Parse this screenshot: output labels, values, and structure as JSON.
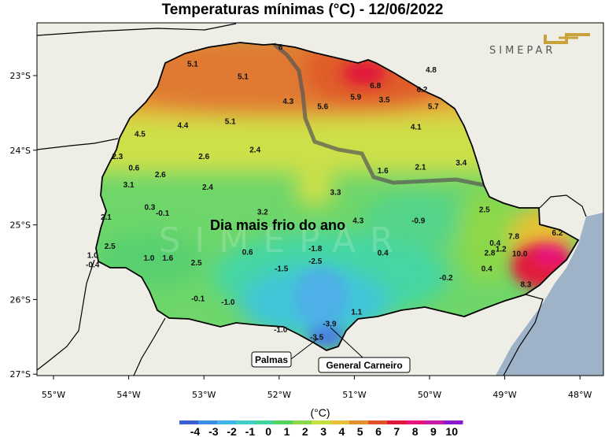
{
  "title": "Temperaturas mínimas (°C) - 12/06/2022",
  "annotation": "Dia mais frio do ano",
  "logo_text": "SIMEPAR",
  "x_ticks": [
    "55°W",
    "54°W",
    "53°W",
    "52°W",
    "51°W",
    "50°W",
    "49°W",
    "48°W"
  ],
  "y_ticks": [
    "23°S",
    "24°S",
    "25°S",
    "26°S",
    "27°S"
  ],
  "cities": [
    {
      "label": "Palmas"
    },
    {
      "label": "General Carneiro"
    }
  ],
  "colorbar": {
    "unit": "(°C)",
    "labels": [
      "-4",
      "-3",
      "-2",
      "-1",
      "0",
      "1",
      "2",
      "3",
      "4",
      "5",
      "6",
      "7",
      "8",
      "9",
      "10"
    ],
    "colors": [
      "#3c5fd6",
      "#3d8ce6",
      "#41b4ea",
      "#3fcfc8",
      "#40d49c",
      "#52d45c",
      "#8ad84a",
      "#c4e03c",
      "#e6c036",
      "#e4902e",
      "#e0542a",
      "#e0183a",
      "#e8147a",
      "#c61aa8",
      "#8a1ad0"
    ]
  },
  "ocean_color": "#9fb3c8",
  "land_color": "#eeeee6",
  "values": [
    {
      "t": "5.1",
      "lon": -53.15,
      "lat": -22.88
    },
    {
      "t": "8",
      "lon": -51.98,
      "lat": -22.65
    },
    {
      "t": "5.1",
      "lon": -52.48,
      "lat": -23.05
    },
    {
      "t": "6.8",
      "lon": -50.72,
      "lat": -23.17
    },
    {
      "t": "4.8",
      "lon": -49.98,
      "lat": -22.96
    },
    {
      "t": "6.2",
      "lon": -50.1,
      "lat": -23.22
    },
    {
      "t": "4.3",
      "lon": -51.88,
      "lat": -23.38
    },
    {
      "t": "5.6",
      "lon": -51.42,
      "lat": -23.45
    },
    {
      "t": "5.9",
      "lon": -50.98,
      "lat": -23.32
    },
    {
      "t": "3.5",
      "lon": -50.6,
      "lat": -23.36
    },
    {
      "t": "5.7",
      "lon": -49.95,
      "lat": -23.45
    },
    {
      "t": "4.4",
      "lon": -53.28,
      "lat": -23.7
    },
    {
      "t": "4.5",
      "lon": -53.85,
      "lat": -23.82
    },
    {
      "t": "5.1",
      "lon": -52.65,
      "lat": -23.65
    },
    {
      "t": "4.1",
      "lon": -50.18,
      "lat": -23.72
    },
    {
      "t": "2.3",
      "lon": -54.15,
      "lat": -24.12
    },
    {
      "t": "2.6",
      "lon": -53.0,
      "lat": -24.12
    },
    {
      "t": "2.4",
      "lon": -52.32,
      "lat": -24.03
    },
    {
      "t": "0.6",
      "lon": -53.93,
      "lat": -24.27
    },
    {
      "t": "2.6",
      "lon": -53.58,
      "lat": -24.36
    },
    {
      "t": "1.6",
      "lon": -50.62,
      "lat": -24.31
    },
    {
      "t": "2.1",
      "lon": -50.12,
      "lat": -24.26
    },
    {
      "t": "3.4",
      "lon": -49.58,
      "lat": -24.2
    },
    {
      "t": "3.1",
      "lon": -54.0,
      "lat": -24.5
    },
    {
      "t": "2.4",
      "lon": -52.95,
      "lat": -24.53
    },
    {
      "t": "3.3",
      "lon": -51.25,
      "lat": -24.6
    },
    {
      "t": "0.3",
      "lon": -53.72,
      "lat": -24.8
    },
    {
      "t": "-0.1",
      "lon": -53.55,
      "lat": -24.88
    },
    {
      "t": "3.2",
      "lon": -52.22,
      "lat": -24.86
    },
    {
      "t": "2.5",
      "lon": -49.27,
      "lat": -24.83
    },
    {
      "t": "2.1",
      "lon": -54.3,
      "lat": -24.93
    },
    {
      "t": "4.3",
      "lon": -50.95,
      "lat": -24.98
    },
    {
      "t": "-0.9",
      "lon": -50.15,
      "lat": -24.98
    },
    {
      "t": "7.8",
      "lon": -48.88,
      "lat": -25.19
    },
    {
      "t": "6.2",
      "lon": -48.3,
      "lat": -25.14
    },
    {
      "t": "2.5",
      "lon": -54.25,
      "lat": -25.32
    },
    {
      "t": "0.4",
      "lon": -49.13,
      "lat": -25.28
    },
    {
      "t": "-1.8",
      "lon": -51.52,
      "lat": -25.35
    },
    {
      "t": "1.0",
      "lon": -54.48,
      "lat": -25.44
    },
    {
      "t": "1.0",
      "lon": -53.73,
      "lat": -25.48
    },
    {
      "t": "1.6",
      "lon": -53.48,
      "lat": -25.48
    },
    {
      "t": "0.6",
      "lon": -52.42,
      "lat": -25.4
    },
    {
      "t": "0.4",
      "lon": -50.62,
      "lat": -25.41
    },
    {
      "t": "2.8",
      "lon": -49.2,
      "lat": -25.41
    },
    {
      "t": "1.2",
      "lon": -49.05,
      "lat": -25.36
    },
    {
      "t": "10.0",
      "lon": -48.8,
      "lat": -25.42
    },
    {
      "t": "-0.4",
      "lon": -54.48,
      "lat": -25.57
    },
    {
      "t": "2.5",
      "lon": -53.1,
      "lat": -25.54
    },
    {
      "t": "-2.5",
      "lon": -51.52,
      "lat": -25.52
    },
    {
      "t": "-1.5",
      "lon": -51.97,
      "lat": -25.62
    },
    {
      "t": "0.4",
      "lon": -49.24,
      "lat": -25.62
    },
    {
      "t": "-0.2",
      "lon": -49.78,
      "lat": -25.74
    },
    {
      "t": "8.3",
      "lon": -48.72,
      "lat": -25.83
    },
    {
      "t": "-0.1",
      "lon": -53.08,
      "lat": -26.02
    },
    {
      "t": "-1.0",
      "lon": -52.68,
      "lat": -26.07
    },
    {
      "t": "1.1",
      "lon": -50.97,
      "lat": -26.2
    },
    {
      "t": "-3.9",
      "lon": -51.33,
      "lat": -26.36
    },
    {
      "t": "-1.0",
      "lon": -51.98,
      "lat": -26.44
    },
    {
      "t": "-3.5",
      "lon": -51.5,
      "lat": -26.54
    }
  ]
}
